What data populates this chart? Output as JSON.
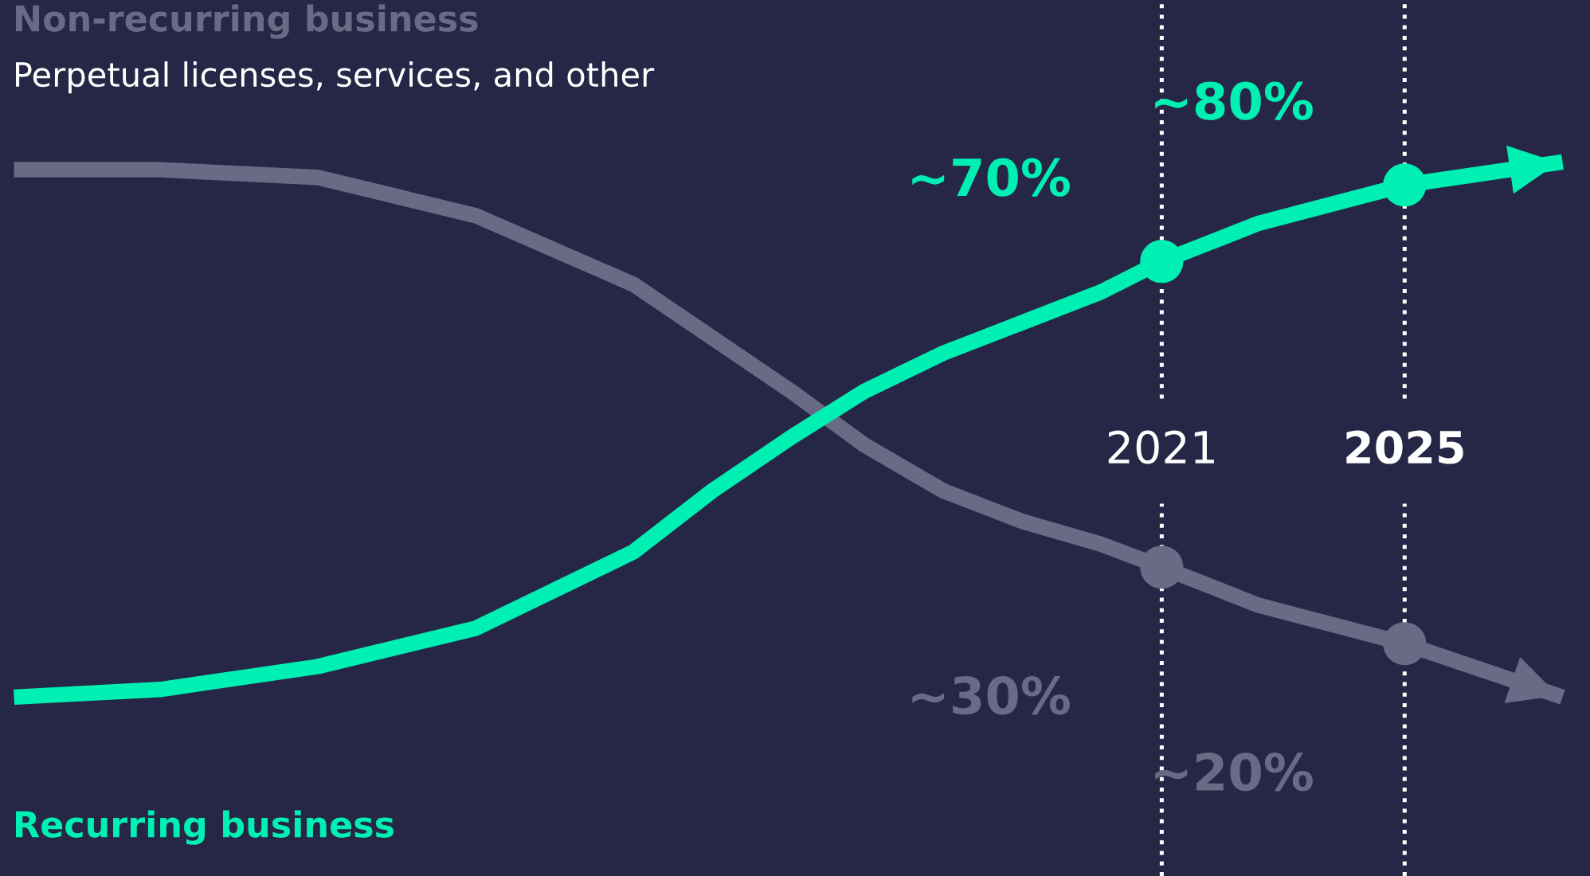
{
  "chart_data": {
    "type": "line",
    "xlim": [
      2002,
      2028
    ],
    "xticks": [
      2021,
      2025
    ],
    "ylim": [
      -10.4,
      104.2
    ],
    "tick_labels": "x",
    "grid": "x",
    "marker": "none",
    "line_style": "solid",
    "annotations": [
      "Perpetual licenses, services, and other"
    ],
    "series": [
      {
        "name": "Non-recurring business",
        "color": "#6a6a86",
        "x": [
          2002.1,
          2004.5,
          2007.1,
          2009.7,
          2012.3,
          2013.6,
          2014.9,
          2016.1,
          2017.4,
          2018.7,
          2020.0,
          2021,
          2022.6,
          2025,
          2027.6
        ],
        "values": [
          82,
          82,
          81,
          76,
          67,
          60,
          53,
          46,
          40,
          36,
          33,
          30,
          25,
          20,
          13
        ]
      },
      {
        "name": "Recurring business",
        "color": "#00f0b4",
        "x": [
          2002.1,
          2004.5,
          2007.1,
          2009.7,
          2012.3,
          2013.6,
          2014.9,
          2016.1,
          2017.4,
          2018.7,
          2020.0,
          2021,
          2022.6,
          2025,
          2027.6
        ],
        "values": [
          13,
          14,
          17,
          22,
          32,
          40,
          47,
          53,
          58,
          62,
          66,
          70,
          75,
          80,
          83
        ]
      },
      {
        "type": "scatter",
        "marker": "circle",
        "color": "#6a6a86",
        "x": [
          2021,
          2025
        ],
        "values": [
          30,
          20
        ],
        "value_labels": [
          "~30%",
          "~20%"
        ]
      },
      {
        "type": "scatter",
        "marker": "circle",
        "color": "#00f0b4",
        "x": [
          2021,
          2025
        ],
        "values": [
          70,
          80
        ],
        "value_labels": [
          "~70%",
          "~80%"
        ]
      }
    ]
  }
}
